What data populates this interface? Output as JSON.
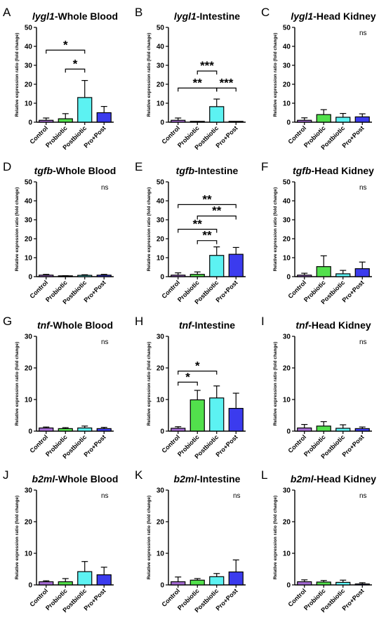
{
  "chart_data": [
    {
      "letter": "A",
      "gene": "lygl1",
      "tissue": "-Whole Blood",
      "type": "bar",
      "ylabel": "Relative expression ratio (fold change)",
      "ylim": [
        0,
        50
      ],
      "yticks": [
        0,
        10,
        20,
        30,
        40,
        50
      ],
      "categories": [
        "Control",
        "Probiotic",
        "Postbiotic",
        "Pro+Post"
      ],
      "values": [
        1,
        1.8,
        13,
        5
      ],
      "errors": [
        1.2,
        2.7,
        9,
        3.3
      ],
      "annotation": "",
      "significance": [
        {
          "from": 0,
          "to": 2,
          "y": 38,
          "label": "*"
        },
        {
          "from": 1,
          "to": 2,
          "y": 28,
          "label": "*"
        }
      ]
    },
    {
      "letter": "B",
      "gene": "lygl1",
      "tissue": "-Intestine",
      "type": "bar",
      "ylabel": "Relative expression ratio (fold change)",
      "ylim": [
        0,
        50
      ],
      "yticks": [
        0,
        10,
        20,
        30,
        40,
        50
      ],
      "categories": [
        "Control",
        "Probiotic",
        "Postbiotic",
        "Pro+Post"
      ],
      "values": [
        1,
        0,
        8.2,
        0
      ],
      "errors": [
        1.2,
        0,
        4,
        0
      ],
      "annotation": "",
      "significance": [
        {
          "from": 1,
          "to": 2,
          "y": 27,
          "label": "***"
        },
        {
          "from": 0,
          "to": 2,
          "y": 18,
          "label": "**"
        },
        {
          "from": 2,
          "to": 3,
          "y": 18,
          "label": "***"
        }
      ]
    },
    {
      "letter": "C",
      "gene": "lygl1",
      "tissue": "-Head Kidney",
      "type": "bar",
      "ylabel": "Relative expression ratio (fold change)",
      "ylim": [
        0,
        50
      ],
      "yticks": [
        0,
        10,
        20,
        30,
        40,
        50
      ],
      "categories": [
        "Control",
        "Probiotic",
        "Postbiotic",
        "Pro+Post"
      ],
      "values": [
        1,
        4,
        2.6,
        2.8
      ],
      "errors": [
        1.3,
        2.6,
        2,
        1.6
      ],
      "annotation": "ns",
      "significance": []
    },
    {
      "letter": "D",
      "gene": "tgfb",
      "tissue": "-Whole Blood",
      "type": "bar",
      "ylabel": "Relative expression ratio (fold change)",
      "ylim": [
        0,
        50
      ],
      "yticks": [
        0,
        10,
        20,
        30,
        40,
        50
      ],
      "categories": [
        "Control",
        "Probiotic",
        "Postbiotic",
        "Pro+Post"
      ],
      "values": [
        0.8,
        0.3,
        0.7,
        0.8
      ],
      "errors": [
        0.4,
        0.2,
        0.3,
        0.4
      ],
      "annotation": "ns",
      "significance": []
    },
    {
      "letter": "E",
      "gene": "tgfb",
      "tissue": "-Intestine",
      "type": "bar",
      "ylabel": "Relative expression ratio (fold change)",
      "ylim": [
        0,
        50
      ],
      "yticks": [
        0,
        10,
        20,
        30,
        40,
        50
      ],
      "categories": [
        "Control",
        "Probiotic",
        "Postbiotic",
        "Pro+Post"
      ],
      "values": [
        0.8,
        1.2,
        11.2,
        11.8
      ],
      "errors": [
        1.2,
        1.3,
        4.5,
        3.6
      ],
      "annotation": "",
      "significance": [
        {
          "from": 0,
          "to": 3,
          "y": 38,
          "label": "**"
        },
        {
          "from": 1,
          "to": 3,
          "y": 32,
          "label": "**"
        },
        {
          "from": 0,
          "to": 2,
          "y": 25,
          "label": "**"
        },
        {
          "from": 1,
          "to": 2,
          "y": 19,
          "label": "**"
        }
      ]
    },
    {
      "letter": "F",
      "gene": "tgfb",
      "tissue": "-Head Kidney",
      "type": "bar",
      "ylabel": "Relative expression ratio (fold change)",
      "ylim": [
        0,
        50
      ],
      "yticks": [
        0,
        10,
        20,
        30,
        40,
        50
      ],
      "categories": [
        "Control",
        "Probiotic",
        "Postbiotic",
        "Pro+Post"
      ],
      "values": [
        0.8,
        5.3,
        1.5,
        4.2
      ],
      "errors": [
        1,
        5.7,
        1.8,
        3.5
      ],
      "annotation": "ns",
      "significance": []
    },
    {
      "letter": "G",
      "gene": "tnf",
      "tissue": "-Whole Blood",
      "type": "bar",
      "ylabel": "Relative expression ratio (fold change)",
      "ylim": [
        0,
        30
      ],
      "yticks": [
        0,
        10,
        20,
        30
      ],
      "categories": [
        "Control",
        "Probiotic",
        "Postbiotic",
        "Pro+Post"
      ],
      "values": [
        1,
        0.8,
        1,
        0.8
      ],
      "errors": [
        0.3,
        0.3,
        0.6,
        0.4
      ],
      "annotation": "ns",
      "significance": []
    },
    {
      "letter": "H",
      "gene": "tnf",
      "tissue": "-Intestine",
      "type": "bar",
      "ylabel": "Relative expression ratio (fold change)",
      "ylim": [
        0,
        30
      ],
      "yticks": [
        0,
        10,
        20,
        30
      ],
      "categories": [
        "Control",
        "Probiotic",
        "Postbiotic",
        "Pro+Post"
      ],
      "values": [
        0.9,
        9.9,
        10.5,
        7.2
      ],
      "errors": [
        0.5,
        3,
        3.8,
        4.8
      ],
      "annotation": "",
      "significance": [
        {
          "from": 0,
          "to": 2,
          "y": 19,
          "label": "*"
        },
        {
          "from": 0,
          "to": 1,
          "y": 15.5,
          "label": "*"
        }
      ]
    },
    {
      "letter": "I",
      "gene": "tnf",
      "tissue": "-Head Kidney",
      "type": "bar",
      "ylabel": "Relative expression ratio (fold change)",
      "ylim": [
        0,
        30
      ],
      "yticks": [
        0,
        10,
        20,
        30
      ],
      "categories": [
        "Control",
        "Probiotic",
        "Postbiotic",
        "Pro+Post"
      ],
      "values": [
        1,
        1.6,
        0.9,
        0.8
      ],
      "errors": [
        1.1,
        1.4,
        1.1,
        0.5
      ],
      "annotation": "ns",
      "significance": []
    },
    {
      "letter": "J",
      "gene": "b2ml",
      "tissue": "-Whole Blood",
      "type": "bar",
      "ylabel": "Relative expression ratio (fold change)",
      "ylim": [
        0,
        30
      ],
      "yticks": [
        0,
        10,
        20,
        30
      ],
      "categories": [
        "Control",
        "Probiotic",
        "Postbiotic",
        "Pro+Post"
      ],
      "values": [
        1,
        1,
        4.2,
        3.2
      ],
      "errors": [
        0.3,
        1,
        3.2,
        2.4
      ],
      "annotation": "ns",
      "significance": []
    },
    {
      "letter": "K",
      "gene": "b2ml",
      "tissue": "-Intestine",
      "type": "bar",
      "ylabel": "Relative expression ratio (fold change)",
      "ylim": [
        0,
        30
      ],
      "yticks": [
        0,
        10,
        20,
        30
      ],
      "categories": [
        "Control",
        "Probiotic",
        "Postbiotic",
        "Pro+Post"
      ],
      "values": [
        1,
        1.5,
        2.6,
        4.1
      ],
      "errors": [
        1.5,
        0.5,
        1,
        3.8
      ],
      "annotation": "ns",
      "significance": []
    },
    {
      "letter": "L",
      "gene": "b2ml",
      "tissue": "-Head Kidney",
      "type": "bar",
      "ylabel": "Relative expression ratio (fold change)",
      "ylim": [
        0,
        30
      ],
      "yticks": [
        0,
        10,
        20,
        30
      ],
      "categories": [
        "Control",
        "Probiotic",
        "Postbiotic",
        "Pro+Post"
      ],
      "values": [
        1,
        0.9,
        0.8,
        0.3
      ],
      "errors": [
        0.6,
        0.5,
        0.7,
        0.4
      ],
      "annotation": "ns",
      "significance": []
    }
  ],
  "colors": {
    "bars": [
      "#a46bd4",
      "#52e04c",
      "#5cf2f2",
      "#3b3bee"
    ],
    "line": "#000000"
  }
}
